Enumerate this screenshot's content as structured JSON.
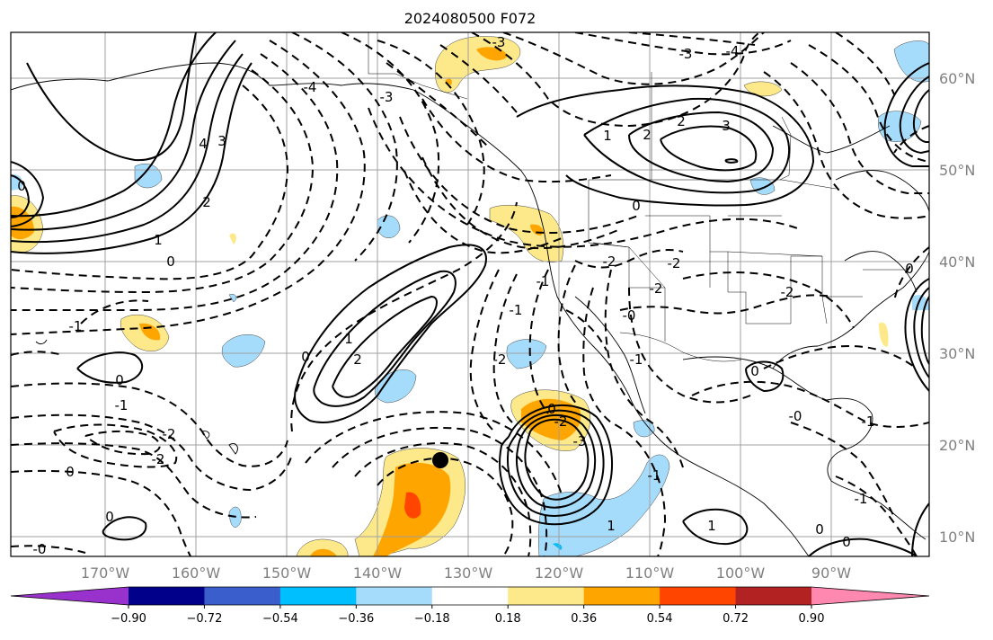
{
  "title": "2024080500 F072",
  "axes": {
    "lon_labels": [
      "170°W",
      "160°W",
      "150°W",
      "140°W",
      "130°W",
      "120°W",
      "110°W",
      "100°W",
      "90°W"
    ],
    "lat_labels": [
      "60°N",
      "50°N",
      "40°N",
      "30°N",
      "20°N",
      "10°N"
    ]
  },
  "colorbar": {
    "colors": [
      "#9932cc",
      "#00008b",
      "#3a5fcd",
      "#00bfff",
      "#a6dcfb",
      "#ffffff",
      "#fde98a",
      "#ffa500",
      "#ff4500",
      "#b22222",
      "#ff88b0"
    ],
    "tick_labels": [
      "−0.90",
      "−0.72",
      "−0.54",
      "−0.36",
      "−0.18",
      "0.18",
      "0.36",
      "0.54",
      "0.72",
      "0.90"
    ]
  },
  "contour_labels": [
    {
      "id": "gulf-alaska-neg4",
      "text": "-4"
    },
    {
      "id": "bering-neg3",
      "text": "-3"
    },
    {
      "id": "yukon-neg3",
      "text": "-3"
    },
    {
      "id": "hudson-neg4",
      "text": "-4"
    },
    {
      "id": "hudson-neg3",
      "text": "-3"
    },
    {
      "id": "canada-1",
      "text": "1"
    },
    {
      "id": "canada-2",
      "text": "2"
    },
    {
      "id": "canada-2b",
      "text": "2"
    },
    {
      "id": "canada-3",
      "text": "3"
    },
    {
      "id": "canada-0",
      "text": "0"
    },
    {
      "id": "west-pac-4",
      "text": "4"
    },
    {
      "id": "west-pac-3",
      "text": "3"
    },
    {
      "id": "west-pac-2",
      "text": "2"
    },
    {
      "id": "west-pac-1",
      "text": "1"
    },
    {
      "id": "west-pac-0",
      "text": "0"
    },
    {
      "id": "north-pac-0",
      "text": "0"
    },
    {
      "id": "mid-pac-0",
      "text": "0"
    },
    {
      "id": "mid-pac-1",
      "text": "1"
    },
    {
      "id": "mid-pac-2",
      "text": "2"
    },
    {
      "id": "central-pac-neg1",
      "text": "-1"
    },
    {
      "id": "central-pac-0",
      "text": "0"
    },
    {
      "id": "hawaii-neg1",
      "text": "-1"
    },
    {
      "id": "hawaii-neg2",
      "text": "-2"
    },
    {
      "id": "hawaii-neg2b",
      "text": "-2"
    },
    {
      "id": "hawaii-0",
      "text": "0"
    },
    {
      "id": "sw-0",
      "text": "0"
    },
    {
      "id": "sw-0b",
      "text": "-0"
    },
    {
      "id": "baja-neg2",
      "text": "-2"
    },
    {
      "id": "baja-neg1",
      "text": "-1"
    },
    {
      "id": "coast-neg1",
      "text": "-1"
    },
    {
      "id": "us-neg2",
      "text": "-2"
    },
    {
      "id": "us-neg2b",
      "text": "-2"
    },
    {
      "id": "us-neg2c",
      "text": "-2"
    },
    {
      "id": "us-neg2d",
      "text": "-2"
    },
    {
      "id": "mexico-0",
      "text": "-0"
    },
    {
      "id": "gulf-0",
      "text": "0"
    },
    {
      "id": "gulf-0b",
      "text": "-0"
    },
    {
      "id": "caribbean-neg1",
      "text": "-1"
    },
    {
      "id": "tc-0",
      "text": "0"
    },
    {
      "id": "tc-neg2",
      "text": "-2"
    },
    {
      "id": "tc-neg3",
      "text": "-3"
    },
    {
      "id": "epac-neg1",
      "text": "-1"
    },
    {
      "id": "epac-neg1b",
      "text": "-1"
    },
    {
      "id": "epac-1",
      "text": "1"
    },
    {
      "id": "epac-1b",
      "text": "1"
    },
    {
      "id": "epac-0",
      "text": "0"
    },
    {
      "id": "central-am-0",
      "text": "0"
    },
    {
      "id": "east-neg1",
      "text": "-1"
    },
    {
      "id": "atl-0",
      "text": "0"
    }
  ]
}
